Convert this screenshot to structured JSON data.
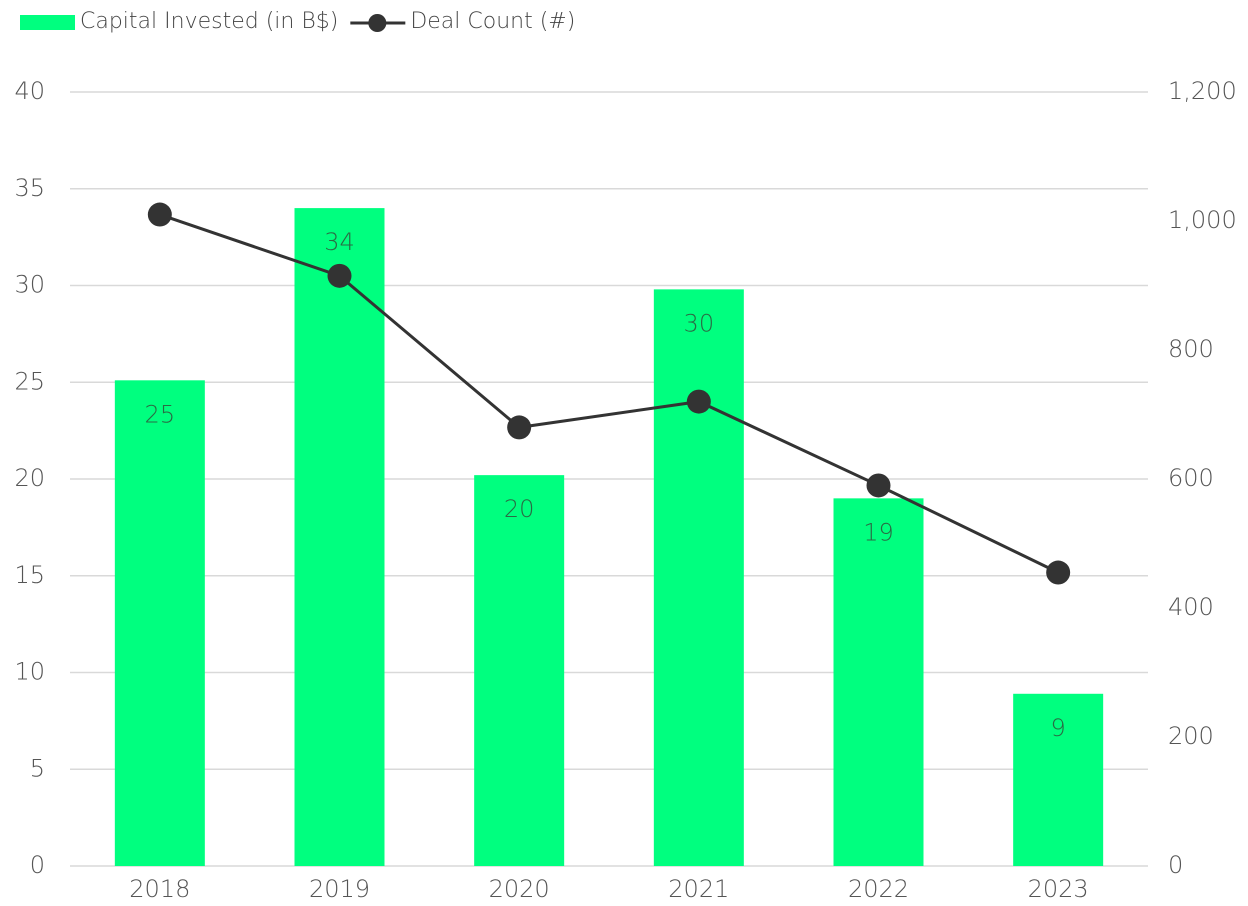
{
  "chart_data": {
    "type": "bar",
    "categories": [
      "2018",
      "2019",
      "2020",
      "2021",
      "2022",
      "2023"
    ],
    "series": [
      {
        "name": "Capital Invested (in B$)",
        "type": "bar",
        "color": "#00ff7f",
        "axis": "y",
        "values": [
          25.1,
          34.0,
          20.2,
          29.8,
          19.0,
          8.9
        ],
        "value_labels": [
          "25",
          "34",
          "20",
          "30",
          "19",
          "9"
        ]
      },
      {
        "name": "Deal Count (#)",
        "type": "line",
        "color": "#333333",
        "axis": "y2",
        "values": [
          1010,
          915,
          680,
          720,
          590,
          455
        ]
      }
    ],
    "ylim": [
      0,
      40
    ],
    "yticks": [
      0,
      5,
      10,
      15,
      20,
      25,
      30,
      35,
      40
    ],
    "y2lim": [
      0,
      1200
    ],
    "y2ticks": [
      0,
      200,
      400,
      600,
      800,
      {
        "value": 1000,
        "label": "1,000"
      },
      {
        "value": 1200,
        "label": "1,200"
      }
    ],
    "grid": true,
    "legend": "top-left"
  }
}
